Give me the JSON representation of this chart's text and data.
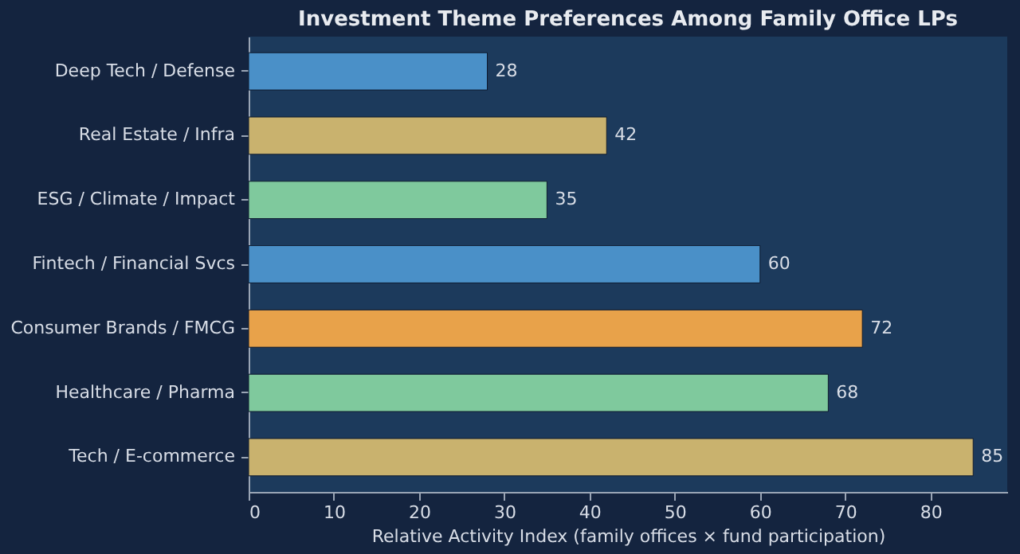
{
  "chart_data": {
    "type": "bar",
    "orientation": "horizontal",
    "title": "Investment Theme Preferences Among Family Office LPs",
    "xlabel": "Relative Activity Index (family offices × fund participation)",
    "categories": [
      "Deep Tech / Defense",
      "Real Estate / Infra",
      "ESG / Climate / Impact",
      "Fintech / Financial Svcs",
      "Consumer Brands / FMCG",
      "Healthcare / Pharma",
      "Tech / E-commerce"
    ],
    "values": [
      28,
      42,
      35,
      60,
      72,
      68,
      85
    ],
    "colors": [
      "#4a90c8",
      "#c9b26e",
      "#7fc99d",
      "#4a90c8",
      "#e8a24a",
      "#7fc99d",
      "#c9b26e"
    ],
    "xlim": [
      0,
      89
    ],
    "xticks": [
      0,
      10,
      20,
      30,
      40,
      50,
      60,
      70,
      80
    ],
    "data_labels": true,
    "grid": false
  }
}
